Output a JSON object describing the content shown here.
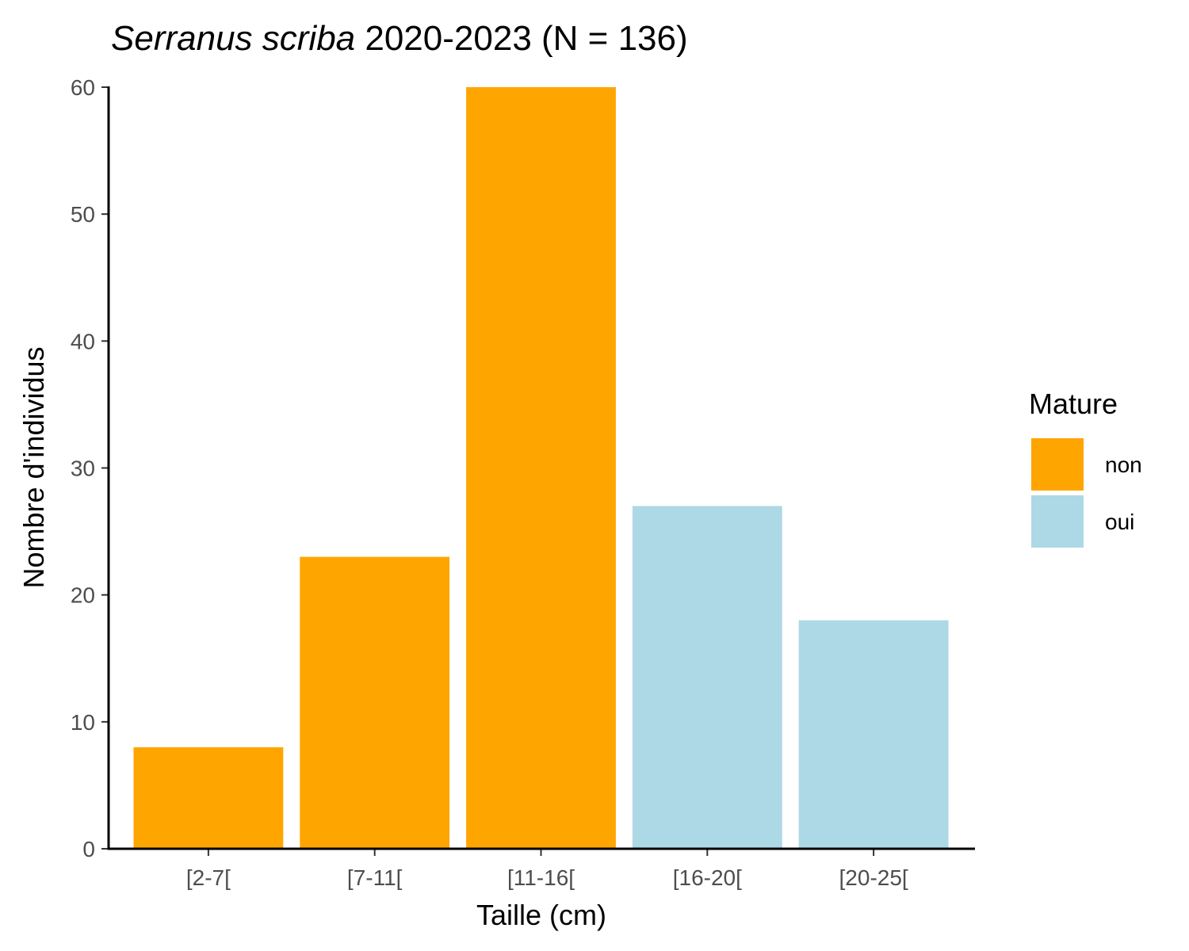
{
  "chart_data": {
    "type": "bar",
    "title_italic": "Serranus scriba",
    "title_rest": " 2020-2023 (N = 136)",
    "xlabel": "Taille (cm)",
    "ylabel": "Nombre d'individus",
    "categories": [
      "[2-7[",
      "[7-11[",
      "[11-16[",
      "[16-20[",
      "[20-25["
    ],
    "values": [
      8,
      23,
      60,
      27,
      18
    ],
    "mature": [
      "non",
      "non",
      "non",
      "oui",
      "oui"
    ],
    "ylim": [
      0,
      60
    ],
    "yticks": [
      0,
      10,
      20,
      30,
      40,
      50,
      60
    ],
    "legend": {
      "title": "Mature",
      "position": "right",
      "entries": [
        {
          "label": "non",
          "color": "#FFA500"
        },
        {
          "label": "oui",
          "color": "#ADD8E6"
        }
      ]
    },
    "grid": false
  }
}
